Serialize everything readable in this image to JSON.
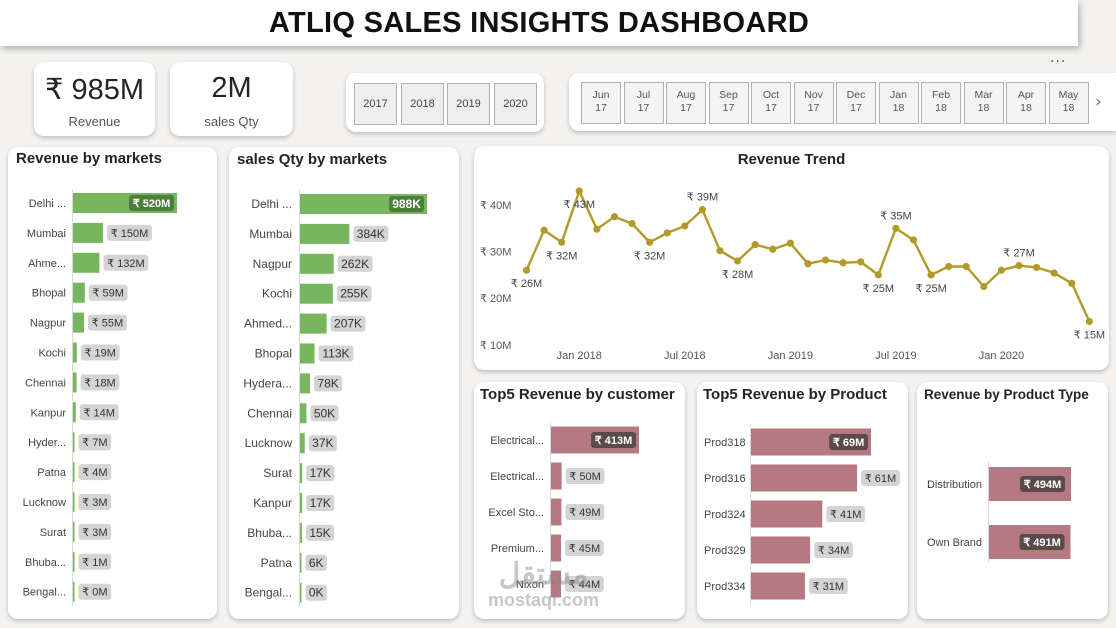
{
  "title": "ATLIQ SALES INSIGHTS DASHBOARD",
  "more_label": "···",
  "kpis": {
    "revenue": {
      "value": "₹ 985M",
      "label": "Revenue"
    },
    "qty": {
      "value": "2M",
      "label": "sales Qty"
    }
  },
  "year_slicer": [
    "2017",
    "2018",
    "2019",
    "2020"
  ],
  "month_slicer": [
    [
      "Jun",
      "17"
    ],
    [
      "Jul",
      "17"
    ],
    [
      "Aug",
      "17"
    ],
    [
      "Sep",
      "17"
    ],
    [
      "Oct",
      "17"
    ],
    [
      "Nov",
      "17"
    ],
    [
      "Dec",
      "17"
    ],
    [
      "Jan",
      "18"
    ],
    [
      "Feb",
      "18"
    ],
    [
      "Mar",
      "18"
    ],
    [
      "Apr",
      "18"
    ],
    [
      "May",
      "18"
    ]
  ],
  "colors": {
    "green": "#77b65e",
    "rose": "#b57a81",
    "gold": "#b29a28",
    "label_bg": "#d4d4d4",
    "label_dark": "#5a4a4b"
  },
  "chart_data": [
    {
      "type": "bar",
      "title": "Revenue by markets",
      "orientation": "horizontal",
      "categories": [
        "Delhi ...",
        "Mumbai",
        "Ahme...",
        "Bhopal",
        "Nagpur",
        "Kochi",
        "Chennai",
        "Kanpur",
        "Hyder...",
        "Patna",
        "Lucknow",
        "Surat",
        "Bhuba...",
        "Bengal..."
      ],
      "values": [
        520,
        150,
        132,
        59,
        55,
        19,
        18,
        14,
        7,
        4,
        3,
        3,
        1,
        0
      ],
      "labels": [
        "₹ 520M",
        "₹ 150M",
        "₹ 132M",
        "₹ 59M",
        "₹ 55M",
        "₹ 19M",
        "₹ 18M",
        "₹ 14M",
        "₹ 7M",
        "₹ 4M",
        "₹ 3M",
        "₹ 3M",
        "₹ 1M",
        "₹ 0M"
      ],
      "unit": "₹ M"
    },
    {
      "type": "bar",
      "title": "sales Qty by markets",
      "orientation": "horizontal",
      "categories": [
        "Delhi ...",
        "Mumbai",
        "Nagpur",
        "Kochi",
        "Ahmed...",
        "Bhopal",
        "Hydera...",
        "Chennai",
        "Lucknow",
        "Surat",
        "Kanpur",
        "Bhuba...",
        "Patna",
        "Bengal..."
      ],
      "values": [
        988,
        384,
        262,
        255,
        207,
        113,
        78,
        50,
        37,
        17,
        17,
        15,
        6,
        0
      ],
      "labels": [
        "988K",
        "384K",
        "262K",
        "255K",
        "207K",
        "113K",
        "78K",
        "50K",
        "37K",
        "17K",
        "17K",
        "15K",
        "6K",
        "0K"
      ],
      "unit": "K"
    },
    {
      "type": "line",
      "title": "Revenue Trend",
      "x": [
        "Oct 2017",
        "Nov 2017",
        "Dec 2017",
        "Jan 2018",
        "Feb 2018",
        "Mar 2018",
        "Apr 2018",
        "May 2018",
        "Jun 2018",
        "Jul 2018",
        "Aug 2018",
        "Sep 2018",
        "Oct 2018",
        "Nov 2018",
        "Dec 2018",
        "Jan 2019",
        "Feb 2019",
        "Mar 2019",
        "Apr 2019",
        "May 2019",
        "Jun 2019",
        "Jul 2019",
        "Aug 2019",
        "Sep 2019",
        "Oct 2019",
        "Nov 2019",
        "Dec 2019",
        "Jan 2020",
        "Feb 2020",
        "Mar 2020",
        "Apr 2020",
        "May 2020",
        "Jun 2020"
      ],
      "values": [
        26,
        34.6,
        32,
        43,
        34.8,
        37.5,
        36,
        32,
        34,
        35.5,
        39,
        30.2,
        28,
        31.5,
        30.5,
        31.8,
        27.4,
        28.2,
        27.6,
        27.8,
        25,
        35,
        32.5,
        25,
        26.8,
        26.8,
        22.5,
        26,
        27,
        26.6,
        25.4,
        23.2,
        15
      ],
      "point_labels": [
        {
          "index": 0,
          "text": "₹ 26M",
          "pos": "below"
        },
        {
          "index": 2,
          "text": "₹ 32M",
          "pos": "below"
        },
        {
          "index": 3,
          "text": "₹ 43M",
          "pos": "below"
        },
        {
          "index": 7,
          "text": "₹ 32M",
          "pos": "below"
        },
        {
          "index": 10,
          "text": "₹ 39M",
          "pos": "above"
        },
        {
          "index": 12,
          "text": "₹ 28M",
          "pos": "below"
        },
        {
          "index": 20,
          "text": "₹ 25M",
          "pos": "below"
        },
        {
          "index": 21,
          "text": "₹ 35M",
          "pos": "above"
        },
        {
          "index": 23,
          "text": "₹ 25M",
          "pos": "below"
        },
        {
          "index": 28,
          "text": "₹ 27M",
          "pos": "above"
        },
        {
          "index": 32,
          "text": "₹ 15M",
          "pos": "below"
        }
      ],
      "y_ticks": [
        {
          "v": 10,
          "t": "₹ 10M"
        },
        {
          "v": 20,
          "t": "₹ 20M"
        },
        {
          "v": 30,
          "t": "₹ 30M"
        },
        {
          "v": 40,
          "t": "₹ 40M"
        }
      ],
      "x_ticks": [
        {
          "index": 3,
          "t": "Jan 2018"
        },
        {
          "index": 9,
          "t": "Jul 2018"
        },
        {
          "index": 15,
          "t": "Jan 2019"
        },
        {
          "index": 21,
          "t": "Jul 2019"
        },
        {
          "index": 27,
          "t": "Jan 2020"
        }
      ],
      "ylim": [
        10,
        45
      ],
      "unit": "₹ M"
    },
    {
      "type": "bar",
      "title": "Top5 Revenue by customer",
      "orientation": "horizontal",
      "categories": [
        "Electrical...",
        "Electrical...",
        "Excel Sto...",
        "Premium...",
        "Nixon"
      ],
      "values": [
        413,
        50,
        49,
        45,
        44
      ],
      "labels": [
        "₹ 413M",
        "₹ 50M",
        "₹ 49M",
        "₹ 45M",
        "₹ 44M"
      ],
      "unit": "₹ M"
    },
    {
      "type": "bar",
      "title": "Top5 Revenue by Product",
      "orientation": "horizontal",
      "categories": [
        "Prod318",
        "Prod316",
        "Prod324",
        "Prod329",
        "Prod334"
      ],
      "values": [
        69,
        61,
        41,
        34,
        31
      ],
      "labels": [
        "₹ 69M",
        "₹ 61M",
        "₹ 41M",
        "₹ 34M",
        "₹ 31M"
      ],
      "unit": "₹ M"
    },
    {
      "type": "bar",
      "title": "Revenue by Product Type",
      "orientation": "horizontal",
      "categories": [
        "Distribution",
        "Own Brand"
      ],
      "values": [
        494,
        491
      ],
      "labels": [
        "₹ 494M",
        "₹ 491M"
      ],
      "unit": "₹ M"
    }
  ],
  "watermark": {
    "arabic": "مستقل",
    "latin": "mostaql.com"
  }
}
